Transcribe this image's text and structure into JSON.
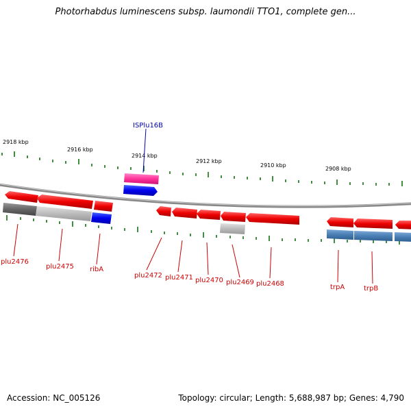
{
  "title": "Photorhabdus luminescens subsp. laumondii TTO1, complete gen...",
  "footer": {
    "accession": "Accession: NC_005126",
    "summary": "Topology: circular; Length: 5,688,987 bp; Genes: 4,790"
  },
  "ruler_labels": [
    "2918 kbp",
    "2916 kbp",
    "2914 kbp",
    "2912 kbp",
    "2910 kbp",
    "2908 kbp"
  ],
  "gene_labels": {
    "ISPlu16B": "ISPlu16B",
    "plu2476": "plu2476",
    "plu2475": "plu2475",
    "ribA": "ribA",
    "plu2472": "plu2472",
    "plu2471": "plu2471",
    "plu2470": "plu2470",
    "plu2469": "plu2469",
    "plu2468": "plu2468",
    "trpA": "trpA",
    "trpB": "trpB"
  },
  "colors": {
    "gene": "#ee0000",
    "rna_pink": "#ff3399",
    "blue": "#0000ee",
    "steel_blue": "#4a7fb5",
    "gray_dark": "#666666",
    "gray_light": "#bbbbbb",
    "tick": "#006600",
    "backbone": "#888888",
    "label_red": "#cc0000",
    "label_blue": "#0000aa"
  }
}
